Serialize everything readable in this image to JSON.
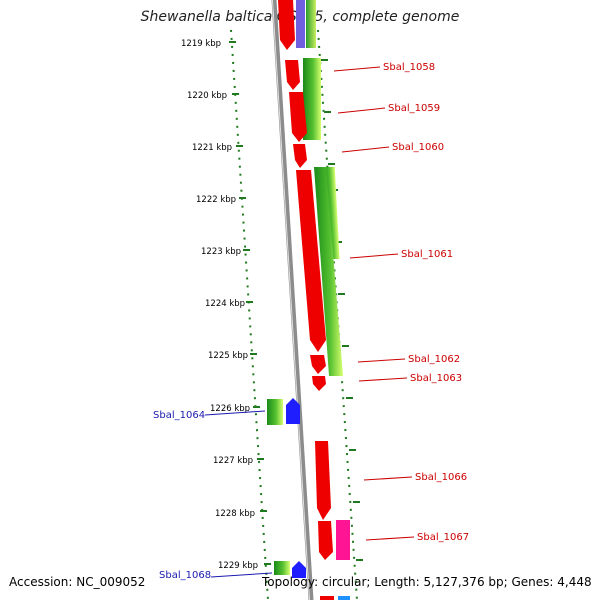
{
  "title": "Shewanella baltica OS155, complete genome",
  "footer": {
    "accession": "Accession: NC_009052",
    "info": "Topology: circular; Length: 5,127,376 bp; Genes: 4,448"
  },
  "ticks": [
    "1219 kbp",
    "1220 kbp",
    "1221 kbp",
    "1222 kbp",
    "1223 kbp",
    "1224 kbp",
    "1225 kbp",
    "1226 kbp",
    "1227 kbp",
    "1228 kbp",
    "1229 kbp"
  ],
  "genes_right": [
    "Sbal_1058",
    "Sbal_1059",
    "Sbal_1060",
    "Sbal_1061",
    "Sbal_1062",
    "Sbal_1063",
    "Sbal_1066",
    "Sbal_1067"
  ],
  "genes_left": [
    "Sbal_1064",
    "Sbal_1068"
  ],
  "colors": {
    "forward_gene": "#ee0000",
    "rna_gene": "#1e1eff",
    "highlight_gene": "#ff1493",
    "gc_green": "#22a022",
    "backbone": "#8c8c8c",
    "label_red": "#cc0000",
    "label_blue": "#1a1ab0"
  }
}
